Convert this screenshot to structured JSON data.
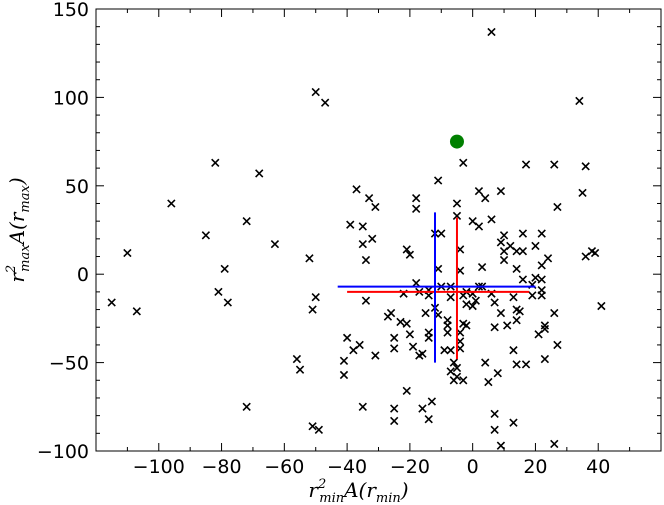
{
  "chart_data": {
    "type": "scatter",
    "title": "",
    "xlabel": {
      "base": "r",
      "sup": "2",
      "sub": "min",
      "rest": "A(r",
      "rest_sub": "min",
      "close": ")"
    },
    "ylabel": {
      "base": "r",
      "sup": "2",
      "sub": "max",
      "rest": "A(r",
      "rest_sub": "max",
      "close": ")"
    },
    "xlim": [
      -120,
      60
    ],
    "ylim": [
      -100,
      150
    ],
    "x_ticks": [
      -100,
      -80,
      -60,
      -40,
      -20,
      0,
      20,
      40
    ],
    "x_tick_labels": [
      "−100",
      "−80",
      "−60",
      "−40",
      "−20",
      "0",
      "20",
      "40"
    ],
    "y_ticks": [
      -100,
      -50,
      0,
      50,
      100,
      150
    ],
    "y_tick_labels": [
      "−100",
      "−50",
      "0",
      "50",
      "100",
      "150"
    ],
    "grid": false,
    "colors": {
      "points": "#000000",
      "highlight": "#008000",
      "cross_red": "#ff0000",
      "cross_blue": "#0000ff"
    },
    "series": [
      {
        "marker": "x",
        "points": [
          [
            -115,
            -16
          ],
          [
            -110,
            12
          ],
          [
            -107,
            -21
          ],
          [
            -96,
            40
          ],
          [
            -85,
            22
          ],
          [
            -82,
            63
          ],
          [
            -81,
            -10
          ],
          [
            -79,
            3
          ],
          [
            -78,
            -16
          ],
          [
            -72,
            30
          ],
          [
            -72,
            -75
          ],
          [
            -68,
            57
          ],
          [
            -63,
            17
          ],
          [
            -56,
            -48
          ],
          [
            -55,
            -54
          ],
          [
            -52,
            9
          ],
          [
            -51,
            -20
          ],
          [
            -50,
            -13
          ],
          [
            -51,
            -86
          ],
          [
            -50,
            103
          ],
          [
            -49,
            -88
          ],
          [
            -47,
            97
          ],
          [
            -41,
            -57
          ],
          [
            -41,
            -49
          ],
          [
            -40,
            -36
          ],
          [
            -39,
            28
          ],
          [
            -38,
            -43
          ],
          [
            -37,
            48
          ],
          [
            -36,
            -40
          ],
          [
            -35,
            17
          ],
          [
            -35,
            -75
          ],
          [
            -35,
            27
          ],
          [
            -34,
            8
          ],
          [
            -34,
            -15
          ],
          [
            -33,
            43
          ],
          [
            -32,
            20
          ],
          [
            -31,
            -46
          ],
          [
            -31,
            38
          ],
          [
            -27,
            -24
          ],
          [
            -26,
            -22
          ],
          [
            -25,
            -42
          ],
          [
            -25,
            -36
          ],
          [
            -25,
            -76
          ],
          [
            -25,
            -83
          ],
          [
            -23,
            -27
          ],
          [
            -22,
            -11
          ],
          [
            -21,
            -28
          ],
          [
            -21,
            -66
          ],
          [
            -21,
            14
          ],
          [
            -20,
            -34
          ],
          [
            -20,
            11
          ],
          [
            -19,
            -41
          ],
          [
            -18,
            43
          ],
          [
            -18,
            37
          ],
          [
            -18,
            -5
          ],
          [
            -17,
            -46
          ],
          [
            -17,
            -10
          ],
          [
            -16,
            -76
          ],
          [
            -16,
            -45
          ],
          [
            -15,
            -22
          ],
          [
            -14,
            -12
          ],
          [
            -14,
            -33
          ],
          [
            -14,
            -36
          ],
          [
            -14,
            -9
          ],
          [
            -14,
            -82
          ],
          [
            -13,
            -72
          ],
          [
            -12,
            -19
          ],
          [
            -12,
            23
          ],
          [
            -11,
            -23
          ],
          [
            -11,
            3
          ],
          [
            -11,
            53
          ],
          [
            -10,
            23
          ],
          [
            -10,
            -7
          ],
          [
            -9,
            -43
          ],
          [
            -8,
            -29
          ],
          [
            -8,
            -33
          ],
          [
            -8,
            -26
          ],
          [
            -7,
            -43
          ],
          [
            -7,
            -55
          ],
          [
            -7,
            -13
          ],
          [
            -7,
            -7
          ],
          [
            -6,
            -60
          ],
          [
            -6,
            -50
          ],
          [
            -5,
            40
          ],
          [
            -5,
            33
          ],
          [
            -5,
            -58
          ],
          [
            -5,
            -53
          ],
          [
            -4,
            -33
          ],
          [
            -4,
            -42
          ],
          [
            -4,
            2
          ],
          [
            -4,
            -38
          ],
          [
            -4,
            14
          ],
          [
            -3,
            -28
          ],
          [
            -3,
            -12
          ],
          [
            -3,
            -60
          ],
          [
            -3,
            63
          ],
          [
            -2,
            -10
          ],
          [
            -2,
            -17
          ],
          [
            -2,
            -29
          ],
          [
            0,
            30
          ],
          [
            0,
            -11
          ],
          [
            0,
            -18
          ],
          [
            1,
            -15
          ],
          [
            2,
            47
          ],
          [
            2,
            -7
          ],
          [
            2,
            27
          ],
          [
            3,
            -7
          ],
          [
            3,
            4
          ],
          [
            4,
            -50
          ],
          [
            4,
            43
          ],
          [
            5,
            -61
          ],
          [
            6,
            -11
          ],
          [
            6,
            137
          ],
          [
            6,
            31
          ],
          [
            7,
            -79
          ],
          [
            7,
            -88
          ],
          [
            7,
            -16
          ],
          [
            7,
            -30
          ],
          [
            8,
            -56
          ],
          [
            9,
            -97
          ],
          [
            9,
            18
          ],
          [
            9,
            -22
          ],
          [
            9,
            47
          ],
          [
            10,
            22
          ],
          [
            10,
            8
          ],
          [
            10,
            13
          ],
          [
            11,
            -29
          ],
          [
            12,
            16
          ],
          [
            13,
            -84
          ],
          [
            13,
            -43
          ],
          [
            13,
            -13
          ],
          [
            14,
            -20
          ],
          [
            14,
            -26
          ],
          [
            14,
            -51
          ],
          [
            14,
            13
          ],
          [
            14,
            3
          ],
          [
            15,
            -21
          ],
          [
            16,
            -3
          ],
          [
            16,
            23
          ],
          [
            16,
            13
          ],
          [
            17,
            -51
          ],
          [
            17,
            62
          ],
          [
            19,
            -6
          ],
          [
            19,
            -12
          ],
          [
            20,
            -2
          ],
          [
            20,
            16
          ],
          [
            21,
            -34
          ],
          [
            22,
            -3
          ],
          [
            22,
            5
          ],
          [
            22,
            -12
          ],
          [
            22,
            -9
          ],
          [
            22,
            23
          ],
          [
            23,
            -31
          ],
          [
            23,
            -48
          ],
          [
            23,
            -29
          ],
          [
            24,
            9
          ],
          [
            26,
            -96
          ],
          [
            26,
            62
          ],
          [
            26,
            -22
          ],
          [
            27,
            38
          ],
          [
            27,
            -40
          ],
          [
            34,
            98
          ],
          [
            35,
            46
          ],
          [
            36,
            61
          ],
          [
            36,
            10
          ],
          [
            38,
            13
          ],
          [
            39,
            12
          ],
          [
            41,
            -18
          ]
        ]
      },
      {
        "marker": "circle",
        "name": "highlight",
        "points": [
          [
            -5,
            75
          ]
        ]
      }
    ],
    "crosshairs": [
      {
        "color": "red",
        "center": [
          -5,
          -10
        ],
        "h_extent": [
          -40,
          18
        ],
        "v_extent": [
          -48,
          32
        ]
      },
      {
        "color": "blue",
        "center": [
          -12,
          -7
        ],
        "h_extent": [
          -43,
          20
        ],
        "v_extent": [
          -50,
          35
        ]
      }
    ]
  }
}
